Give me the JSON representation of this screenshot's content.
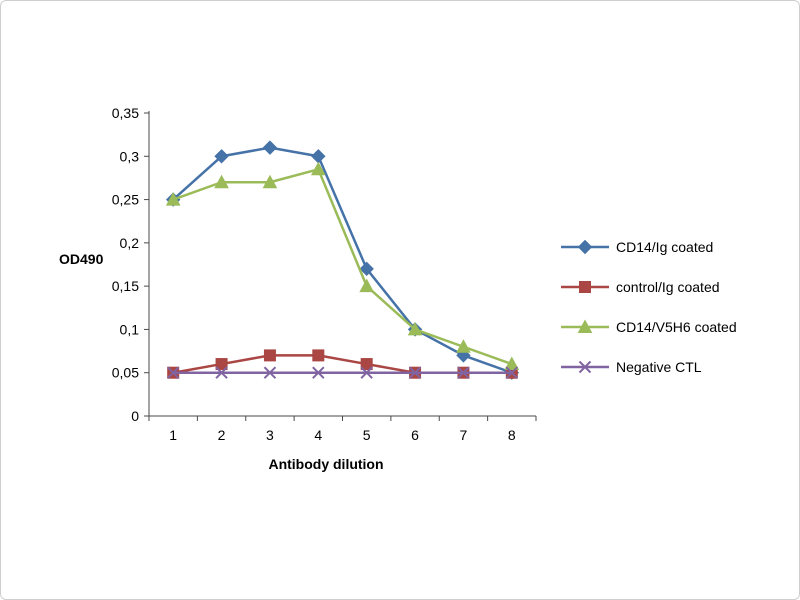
{
  "chart_data": {
    "type": "line",
    "title": "",
    "xlabel": "Antibody dilution",
    "ylabel": "OD490",
    "x": [
      1,
      2,
      3,
      4,
      5,
      6,
      7,
      8
    ],
    "xtick_labels": [
      "1",
      "2",
      "3",
      "4",
      "5",
      "6",
      "7",
      "8"
    ],
    "ylim": [
      0,
      0.35
    ],
    "ytick_step": 0.05,
    "ytick_labels": [
      "0",
      "0,05",
      "0,1",
      "0,15",
      "0,2",
      "0,25",
      "0,3",
      "0,35"
    ],
    "grid": false,
    "legend_position": "right",
    "axis_color": "#4a4a4a",
    "series": [
      {
        "name": "CD14/Ig coated",
        "color": "#4572A7",
        "marker": "diamond",
        "values": [
          0.25,
          0.3,
          0.31,
          0.3,
          0.17,
          0.1,
          0.07,
          0.05
        ]
      },
      {
        "name": "control/Ig coated",
        "color": "#AA4643",
        "marker": "square",
        "values": [
          0.05,
          0.06,
          0.07,
          0.07,
          0.06,
          0.05,
          0.05,
          0.05
        ]
      },
      {
        "name": "CD14/V5H6 coated",
        "color": "#9BBB59",
        "marker": "triangle",
        "values": [
          0.25,
          0.27,
          0.27,
          0.285,
          0.15,
          0.1,
          0.08,
          0.06
        ]
      },
      {
        "name": "Negative CTL",
        "color": "#8064A2",
        "marker": "x",
        "values": [
          0.05,
          0.05,
          0.05,
          0.05,
          0.05,
          0.05,
          0.05,
          0.05
        ]
      }
    ]
  }
}
